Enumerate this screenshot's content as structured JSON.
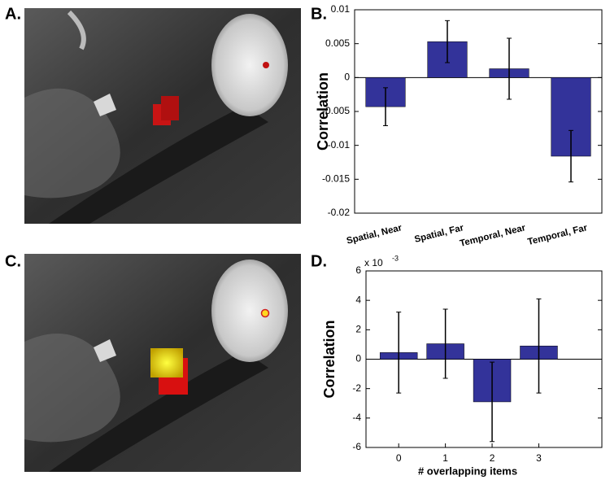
{
  "panel_labels": [
    "A.",
    "B.",
    "C.",
    "D."
  ],
  "chart_data": [
    {
      "type": "bar",
      "ylabel": "Correlation",
      "categories": [
        "Spatial, Near",
        "Spatial, Far",
        "Temporal, Near",
        "Temporal, Far"
      ],
      "values": [
        -0.0043,
        0.0053,
        0.0013,
        -0.0116
      ],
      "errors": [
        0.0028,
        0.0031,
        0.0045,
        0.0038
      ],
      "color": "#33339a",
      "ylim": [
        -0.02,
        0.01
      ],
      "yticks": [
        -0.02,
        -0.015,
        -0.01,
        -0.005,
        0,
        0.005,
        0.01
      ]
    },
    {
      "type": "bar",
      "ylabel": "Correlation",
      "xlabel": "# overlapping items",
      "y_multiplier": {
        "base": "x 10",
        "exponent": "-3"
      },
      "x": [
        0,
        1,
        2,
        3
      ],
      "values": [
        0.45,
        1.05,
        -2.9,
        0.9
      ],
      "errors": [
        2.75,
        2.35,
        2.7,
        3.2
      ],
      "color": "#33339a",
      "xlim": [
        -0.7,
        4.35
      ],
      "xticks": [
        0,
        1,
        2,
        3
      ],
      "ylim": [
        -6,
        6
      ],
      "yticks": [
        -6,
        -4,
        -2,
        0,
        2,
        4,
        6
      ]
    }
  ]
}
